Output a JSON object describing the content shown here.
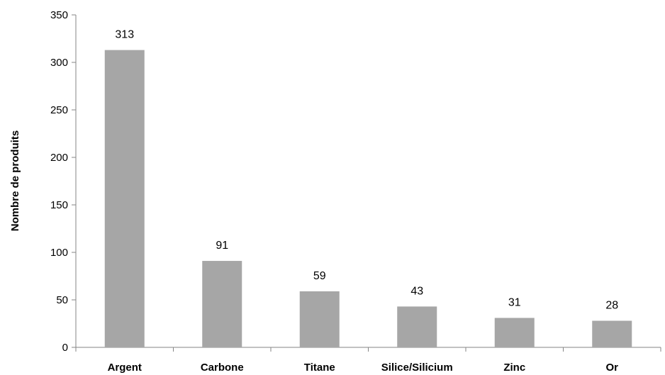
{
  "chart_data": {
    "type": "bar",
    "title": "",
    "xlabel": "",
    "ylabel": "Nombre de produits",
    "categories": [
      "Argent",
      "Carbone",
      "Titane",
      "Silice/Silicium",
      "Zinc",
      "Or"
    ],
    "values": [
      313,
      91,
      59,
      43,
      31,
      28
    ],
    "data_labels": [
      "313",
      "91",
      "59",
      "43",
      "31",
      "28"
    ],
    "ylim": [
      0,
      350
    ],
    "yticks": [
      0,
      50,
      100,
      150,
      200,
      250,
      300,
      350
    ],
    "grid": false,
    "legend": "none",
    "bar_color": "#a6a6a6",
    "axis_color": "#868686"
  }
}
